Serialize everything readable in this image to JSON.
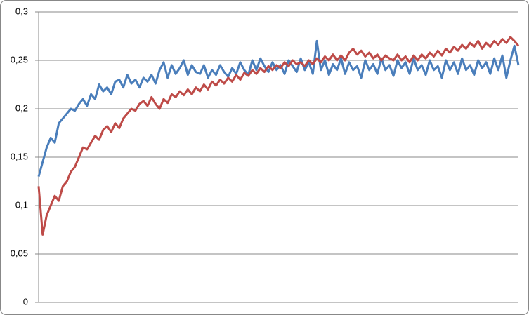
{
  "chart_data": {
    "type": "line",
    "ylim": [
      0,
      0.3
    ],
    "yticks": [
      0,
      {
        "value": 0.05,
        "label": "0,05"
      },
      {
        "value": 0.1,
        "label": "0,1"
      },
      {
        "value": 0.15,
        "label": "0,15"
      },
      {
        "value": 0.2,
        "label": "0,2"
      },
      {
        "value": 0.25,
        "label": "0,25"
      },
      {
        "value": 0.3,
        "label": "0,3"
      }
    ],
    "grid": true,
    "series": [
      {
        "color": "#4a7ebb",
        "values": [
          0.13,
          0.145,
          0.16,
          0.17,
          0.165,
          0.185,
          0.19,
          0.195,
          0.2,
          0.198,
          0.205,
          0.21,
          0.203,
          0.215,
          0.21,
          0.225,
          0.218,
          0.222,
          0.215,
          0.228,
          0.23,
          0.222,
          0.235,
          0.226,
          0.23,
          0.222,
          0.232,
          0.228,
          0.235,
          0.226,
          0.24,
          0.248,
          0.232,
          0.245,
          0.236,
          0.242,
          0.25,
          0.235,
          0.245,
          0.238,
          0.236,
          0.245,
          0.232,
          0.24,
          0.235,
          0.245,
          0.238,
          0.233,
          0.242,
          0.236,
          0.248,
          0.24,
          0.235,
          0.25,
          0.24,
          0.252,
          0.244,
          0.238,
          0.248,
          0.24,
          0.245,
          0.236,
          0.25,
          0.244,
          0.238,
          0.252,
          0.24,
          0.248,
          0.236,
          0.27,
          0.24,
          0.25,
          0.235,
          0.246,
          0.24,
          0.252,
          0.236,
          0.248,
          0.24,
          0.244,
          0.232,
          0.25,
          0.24,
          0.246,
          0.236,
          0.252,
          0.24,
          0.245,
          0.234,
          0.25,
          0.242,
          0.248,
          0.236,
          0.252,
          0.24,
          0.245,
          0.235,
          0.25,
          0.24,
          0.244,
          0.232,
          0.25,
          0.24,
          0.248,
          0.236,
          0.252,
          0.24,
          0.245,
          0.235,
          0.25,
          0.242,
          0.248,
          0.236,
          0.252,
          0.24,
          0.255,
          0.232,
          0.25,
          0.265,
          0.245
        ]
      },
      {
        "color": "#be4b48",
        "values": [
          0.12,
          0.07,
          0.09,
          0.1,
          0.11,
          0.105,
          0.12,
          0.125,
          0.135,
          0.14,
          0.15,
          0.16,
          0.158,
          0.165,
          0.172,
          0.168,
          0.178,
          0.182,
          0.176,
          0.185,
          0.18,
          0.19,
          0.195,
          0.2,
          0.198,
          0.205,
          0.208,
          0.203,
          0.212,
          0.205,
          0.2,
          0.21,
          0.206,
          0.215,
          0.212,
          0.218,
          0.214,
          0.22,
          0.215,
          0.222,
          0.218,
          0.225,
          0.22,
          0.228,
          0.224,
          0.23,
          0.226,
          0.232,
          0.228,
          0.235,
          0.23,
          0.237,
          0.234,
          0.24,
          0.236,
          0.242,
          0.238,
          0.244,
          0.24,
          0.245,
          0.242,
          0.248,
          0.244,
          0.25,
          0.246,
          0.248,
          0.244,
          0.25,
          0.246,
          0.252,
          0.248,
          0.254,
          0.25,
          0.256,
          0.25,
          0.255,
          0.25,
          0.258,
          0.262,
          0.256,
          0.26,
          0.254,
          0.258,
          0.252,
          0.256,
          0.25,
          0.255,
          0.252,
          0.25,
          0.256,
          0.25,
          0.254,
          0.248,
          0.255,
          0.25,
          0.256,
          0.252,
          0.258,
          0.254,
          0.26,
          0.255,
          0.262,
          0.258,
          0.264,
          0.26,
          0.266,
          0.262,
          0.268,
          0.264,
          0.27,
          0.262,
          0.268,
          0.264,
          0.27,
          0.266,
          0.272,
          0.268,
          0.274,
          0.27,
          0.265
        ]
      }
    ]
  }
}
